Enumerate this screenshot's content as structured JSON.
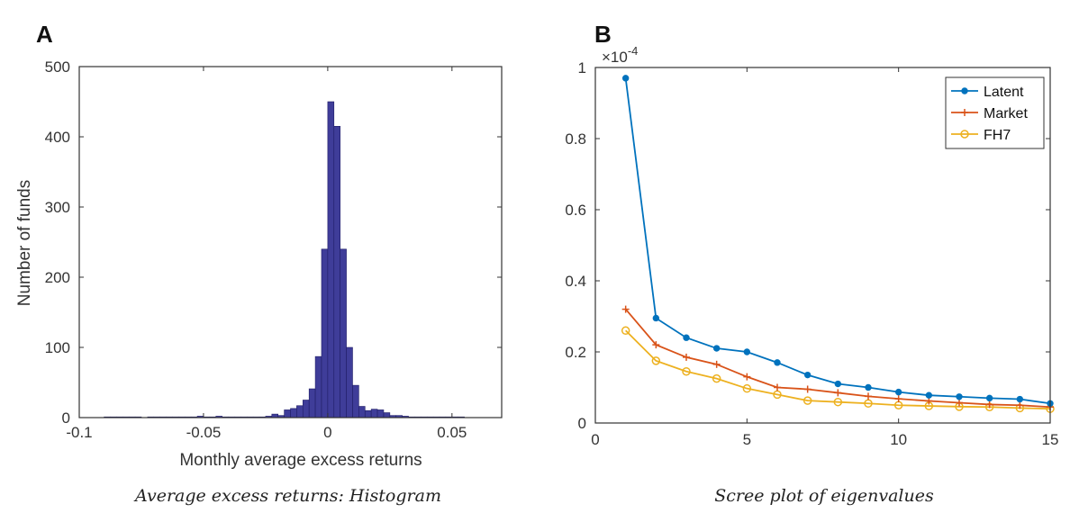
{
  "colors": {
    "axis": "#333333",
    "hist_fill": "#3f3d99",
    "hist_edge": "#1f1d66",
    "latent": "#0072bd",
    "market": "#d95319",
    "fh7": "#edb120"
  },
  "chart_data": [
    {
      "panel": "A",
      "type": "bar",
      "caption": "Average excess returns: Histogram",
      "xlabel": "Monthly average excess returns",
      "ylabel": "Number of funds",
      "xlim": [
        -0.1,
        0.07
      ],
      "ylim": [
        0,
        500
      ],
      "xticks": [
        -0.1,
        -0.05,
        0,
        0.05
      ],
      "xtick_labels": [
        "-0.1",
        "-0.05",
        "0",
        "0.05"
      ],
      "yticks": [
        0,
        100,
        200,
        300,
        400,
        500
      ],
      "ytick_labels": [
        "0",
        "100",
        "200",
        "300",
        "400",
        "500"
      ],
      "bin_width": 0.0025,
      "bin_start": -0.09,
      "values": [
        1,
        1,
        1,
        1,
        1,
        1,
        0,
        1,
        1,
        1,
        1,
        1,
        1,
        1,
        1,
        2,
        1,
        1,
        2,
        1,
        1,
        1,
        1,
        1,
        1,
        1,
        2,
        5,
        3,
        11,
        13,
        17,
        25,
        41,
        87,
        240,
        450,
        415,
        240,
        100,
        46,
        16,
        10,
        12,
        11,
        7,
        3,
        3,
        2,
        1,
        1,
        1,
        1,
        1,
        1,
        1,
        1,
        1
      ],
      "grid": false
    },
    {
      "panel": "B",
      "type": "line",
      "caption": "Scree plot of eigenvalues",
      "xlabel": "",
      "ylabel": "",
      "scale_label": "×10",
      "scale_exponent": "-4",
      "xlim": [
        0,
        15
      ],
      "ylim": [
        0,
        1
      ],
      "xticks": [
        0,
        5,
        10,
        15
      ],
      "xtick_labels": [
        "0",
        "5",
        "10",
        "15"
      ],
      "yticks": [
        0,
        0.2,
        0.4,
        0.6,
        0.8,
        1
      ],
      "ytick_labels": [
        "0",
        "0.2",
        "0.4",
        "0.6",
        "0.8",
        "1"
      ],
      "x": [
        1,
        2,
        3,
        4,
        5,
        6,
        7,
        8,
        9,
        10,
        11,
        12,
        13,
        14,
        15
      ],
      "series": [
        {
          "name": "Latent",
          "marker": "dot",
          "values": [
            0.97,
            0.295,
            0.24,
            0.21,
            0.2,
            0.17,
            0.135,
            0.11,
            0.1,
            0.087,
            0.078,
            0.074,
            0.07,
            0.067,
            0.055
          ]
        },
        {
          "name": "Market",
          "marker": "plus",
          "values": [
            0.32,
            0.22,
            0.185,
            0.165,
            0.13,
            0.1,
            0.095,
            0.085,
            0.075,
            0.068,
            0.062,
            0.057,
            0.052,
            0.05,
            0.045
          ]
        },
        {
          "name": "FH7",
          "marker": "circle",
          "values": [
            0.26,
            0.175,
            0.145,
            0.125,
            0.097,
            0.08,
            0.063,
            0.059,
            0.055,
            0.05,
            0.048,
            0.046,
            0.045,
            0.042,
            0.04
          ]
        }
      ],
      "legend_position": "top-right",
      "grid": false
    }
  ]
}
